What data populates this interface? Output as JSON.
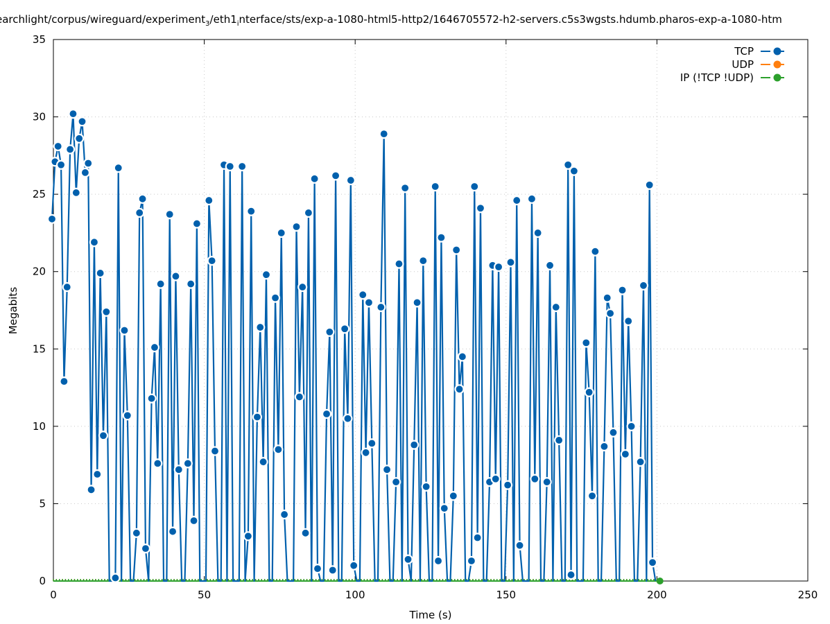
{
  "chart_data": {
    "type": "line",
    "title": {
      "part1": "earchlight/corpus/wireguard/experiment",
      "sub1": "3",
      "part2": "/eth1",
      "sub2": "i",
      "part3": "nterface/sts/exp-a-1080-html5-http2/1646705572-h2-servers.c5s3wgsts.hdumb.pharos-exp-a-1080-htm"
    },
    "xlabel": "Time (s)",
    "ylabel": "Megabits",
    "xlim": [
      0,
      250
    ],
    "ylim": [
      0,
      35
    ],
    "xticks": [
      0,
      50,
      100,
      150,
      200,
      250
    ],
    "yticks": [
      0,
      5,
      10,
      15,
      20,
      25,
      30,
      35
    ],
    "grid": true,
    "legend_position": "top-right",
    "series": [
      {
        "name": "TCP",
        "color": "#0060ad",
        "x_start": 0,
        "x_step": 1,
        "values": [
          23.4,
          27.1,
          28.1,
          26.9,
          12.9,
          19.0,
          27.9,
          30.2,
          25.1,
          28.6,
          29.7,
          26.4,
          27.0,
          5.9,
          21.9,
          6.9,
          19.9,
          9.4,
          17.4,
          0,
          0,
          0.2,
          26.7,
          0,
          16.2,
          10.7,
          0,
          0,
          3.1,
          23.8,
          24.7,
          2.1,
          0,
          11.8,
          15.1,
          7.6,
          19.2,
          0,
          0,
          23.7,
          3.2,
          19.7,
          7.2,
          0,
          0,
          7.6,
          19.2,
          3.9,
          23.1,
          0,
          0,
          0,
          24.6,
          20.7,
          8.4,
          0,
          0,
          26.9,
          0,
          26.8,
          0,
          0,
          0,
          26.8,
          0,
          2.9,
          23.9,
          0,
          10.6,
          16.4,
          7.7,
          19.8,
          0,
          0,
          18.3,
          8.5,
          22.5,
          4.3,
          0,
          0,
          0,
          22.9,
          11.9,
          19.0,
          3.1,
          23.8,
          0,
          26.0,
          0.8,
          0,
          0,
          10.8,
          16.1,
          0.7,
          26.2,
          0,
          0,
          16.3,
          10.5,
          25.9,
          1.0,
          0,
          0,
          18.5,
          8.3,
          18.0,
          8.9,
          0,
          0,
          17.7,
          28.9,
          7.2,
          0,
          0,
          6.4,
          20.5,
          0,
          25.4,
          1.4,
          0,
          8.8,
          18.0,
          0,
          20.7,
          6.1,
          0,
          0,
          25.5,
          1.3,
          22.2,
          4.7,
          0,
          0,
          5.5,
          21.4,
          12.4,
          14.5,
          0,
          0,
          1.3,
          25.5,
          2.8,
          24.1,
          0,
          0,
          6.4,
          20.4,
          6.6,
          20.3,
          0,
          0,
          6.2,
          20.6,
          0,
          24.6,
          2.3,
          0,
          0,
          0,
          24.7,
          6.6,
          22.5,
          0,
          0,
          6.4,
          20.4,
          0,
          17.7,
          9.1,
          0,
          0,
          26.9,
          0.4,
          26.5,
          0,
          0,
          0,
          15.4,
          12.2,
          5.5,
          21.3,
          0,
          0,
          8.7,
          18.3,
          17.3,
          9.6,
          0,
          0,
          18.8,
          8.2,
          16.8,
          10.0,
          0,
          0,
          7.7,
          19.1,
          0,
          25.6,
          1.2,
          0
        ]
      },
      {
        "name": "UDP",
        "color": "#ff7f0e",
        "x_range": [
          0,
          201
        ],
        "constant_value": 0
      },
      {
        "name": "IP (!TCP  !UDP)",
        "color": "#2ca02c",
        "x_range": [
          0,
          201
        ],
        "constant_value": 0
      }
    ]
  }
}
